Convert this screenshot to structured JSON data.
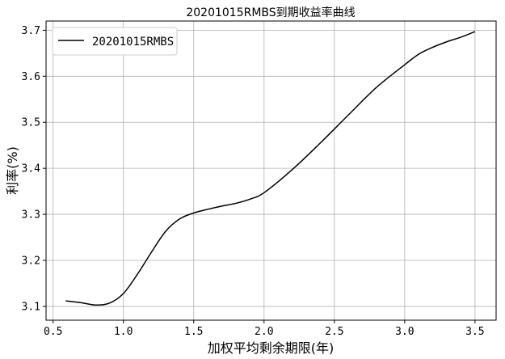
{
  "chart_data": {
    "type": "line",
    "title": "20201015RMBS到期收益率曲线",
    "xlabel": "加权平均剩余期限(年)",
    "ylabel": "利率(%)",
    "xlim": [
      0.45,
      3.65
    ],
    "ylim": [
      3.07,
      3.72
    ],
    "xticks": [
      0.5,
      1.0,
      1.5,
      2.0,
      2.5,
      3.0,
      3.5
    ],
    "xtick_labels": [
      "0.5",
      "1.0",
      "1.5",
      "2.0",
      "2.5",
      "3.0",
      "3.5"
    ],
    "yticks": [
      3.1,
      3.2,
      3.3,
      3.4,
      3.5,
      3.6,
      3.7
    ],
    "ytick_labels": [
      "3.1",
      "3.2",
      "3.3",
      "3.4",
      "3.5",
      "3.6",
      "3.7"
    ],
    "grid": true,
    "legend_position": "top-left",
    "series": [
      {
        "name": "20201015RMBS",
        "color": "#000000",
        "x": [
          0.59,
          0.7,
          0.8,
          0.9,
          1.0,
          1.1,
          1.2,
          1.3,
          1.4,
          1.5,
          1.6,
          1.7,
          1.8,
          1.9,
          2.0,
          2.2,
          2.4,
          2.6,
          2.8,
          3.0,
          3.1,
          3.2,
          3.3,
          3.4,
          3.5
        ],
        "y": [
          3.112,
          3.108,
          3.103,
          3.107,
          3.128,
          3.17,
          3.218,
          3.263,
          3.29,
          3.303,
          3.311,
          3.318,
          3.324,
          3.333,
          3.347,
          3.397,
          3.455,
          3.516,
          3.576,
          3.625,
          3.648,
          3.663,
          3.675,
          3.685,
          3.697
        ]
      }
    ]
  }
}
